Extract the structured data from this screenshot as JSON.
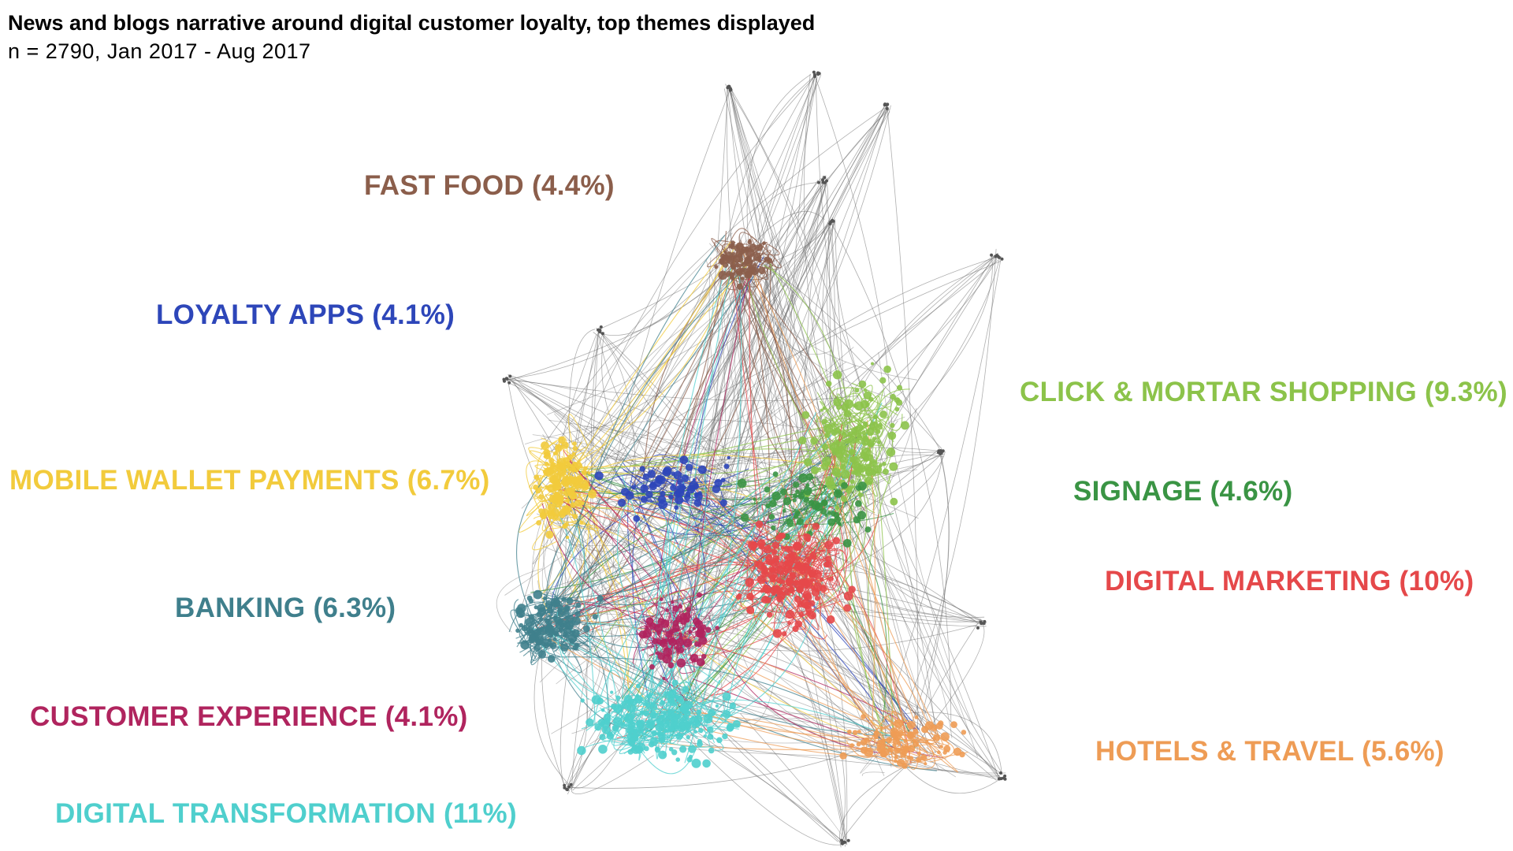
{
  "header": {
    "title": "News and blogs narrative around digital customer loyalty, top themes displayed",
    "subtitle": "n = 2790, Jan 2017 - Aug 2017"
  },
  "clusters": [
    {
      "id": "fast-food",
      "label": "FAST FOOD (4.4%)",
      "share_pct": 4.4,
      "color": "#8B5E4B"
    },
    {
      "id": "loyalty-apps",
      "label": "LOYALTY APPS (4.1%)",
      "share_pct": 4.1,
      "color": "#2D46B9"
    },
    {
      "id": "click-mortar",
      "label": "CLICK & MORTAR SHOPPING (9.3%)",
      "share_pct": 9.3,
      "color": "#8CC34A"
    },
    {
      "id": "mobile-wallet",
      "label": "MOBILE WALLET PAYMENTS (6.7%)",
      "share_pct": 6.7,
      "color": "#F2CB3C"
    },
    {
      "id": "signage",
      "label": "SIGNAGE (4.6%)",
      "share_pct": 4.6,
      "color": "#3A9444"
    },
    {
      "id": "digital-marketing",
      "label": "DIGITAL MARKETING (10%)",
      "share_pct": 10,
      "color": "#E5484A"
    },
    {
      "id": "banking",
      "label": "BANKING (6.3%)",
      "share_pct": 6.3,
      "color": "#3F7F8C"
    },
    {
      "id": "customer-experience",
      "label": "CUSTOMER EXPERIENCE (4.1%)",
      "share_pct": 4.1,
      "color": "#B0245E"
    },
    {
      "id": "hotels-travel",
      "label": "HOTELS & TRAVEL (5.6%)",
      "share_pct": 5.6,
      "color": "#EE9C55"
    },
    {
      "id": "digital-transformation",
      "label": "DIGITAL TRANSFORMATION (11%)",
      "share_pct": 11,
      "color": "#4FCFCD"
    }
  ],
  "edge_color": "#6e6e6e"
}
